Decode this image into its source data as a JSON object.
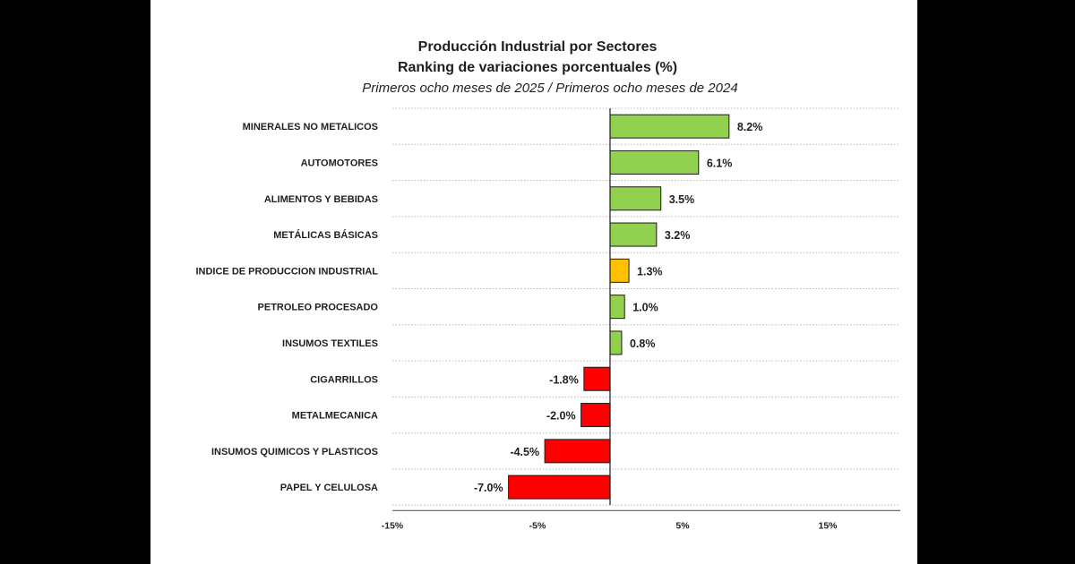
{
  "chart_data": {
    "type": "bar",
    "orientation": "horizontal",
    "title": "Producción Industrial por Sectores",
    "subtitle": "Ranking de variaciones porcentuales (%)",
    "subtitle2": "Primeros ocho meses de 2025 / Primeros ocho meses de 2024",
    "categories": [
      "MINERALES NO METALICOS",
      "AUTOMOTORES",
      "ALIMENTOS Y BEBIDAS",
      "METÁLICAS BÁSICAS",
      "INDICE DE PRODUCCION INDUSTRIAL",
      "PETROLEO PROCESADO",
      "INSUMOS TEXTILES",
      "CIGARRILLOS",
      "METALMECANICA",
      "INSUMOS QUIMICOS Y PLASTICOS",
      "PAPEL Y CELULOSA"
    ],
    "values": [
      8.2,
      6.1,
      3.5,
      3.2,
      1.3,
      1.0,
      0.8,
      -1.8,
      -2.0,
      -4.5,
      -7.0
    ],
    "value_labels": [
      "8.2%",
      "6.1%",
      "3.5%",
      "3.2%",
      "1.3%",
      "1.0%",
      "0.8%",
      "-1.8%",
      "-2.0%",
      "-4.5%",
      "-7.0%"
    ],
    "highlight_index": 4,
    "xlim": [
      -15,
      20
    ],
    "xticks": [
      -15,
      -5,
      5,
      15
    ],
    "xtick_labels": [
      "-15%",
      "-5%",
      "5%",
      "15%"
    ],
    "grid": true,
    "colors": {
      "positive": "#92d050",
      "negative": "#ff0000",
      "highlight": "#ffc000",
      "bar_border": "#1a1a1a",
      "grid": "#b8b8b8"
    }
  }
}
